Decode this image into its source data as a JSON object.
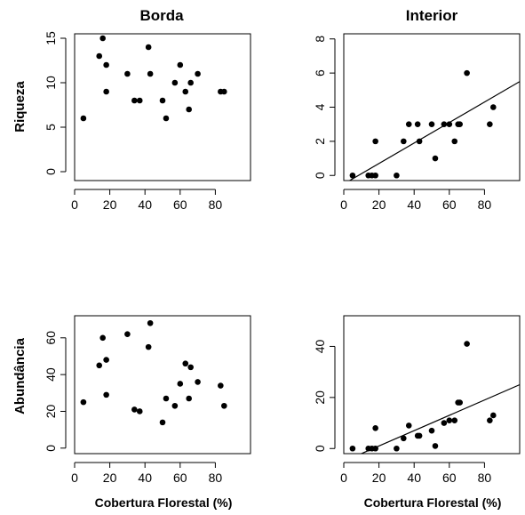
{
  "figure": {
    "col_titles": [
      "Borda",
      "Interior"
    ],
    "ylabels": [
      "Riqueza",
      "Abundância"
    ],
    "xlabel": "Cobertura Florestal (%)"
  },
  "chart_data": [
    {
      "type": "scatter",
      "title": "Borda",
      "xlabel": "",
      "ylabel": "Riqueza",
      "xlim": [
        0,
        100
      ],
      "ylim": [
        -1,
        15.5
      ],
      "xticks": [
        0,
        20,
        40,
        60,
        80
      ],
      "yticks": [
        0,
        5,
        10,
        15
      ],
      "x": [
        5,
        14,
        16,
        18,
        18,
        30,
        34,
        37,
        42,
        43,
        50,
        52,
        57,
        60,
        63,
        65,
        66,
        70,
        83,
        85
      ],
      "y": [
        6,
        13,
        15,
        12,
        9,
        11,
        8,
        8,
        14,
        11,
        8,
        6,
        10,
        12,
        9,
        7,
        10,
        11,
        9,
        9
      ],
      "fit_line": null
    },
    {
      "type": "scatter",
      "title": "Interior",
      "xlabel": "",
      "ylabel": "",
      "xlim": [
        0,
        100
      ],
      "ylim": [
        -0.3,
        8.3
      ],
      "xticks": [
        0,
        20,
        40,
        60,
        80
      ],
      "yticks": [
        0,
        2,
        4,
        6,
        8
      ],
      "x": [
        5,
        14,
        16,
        18,
        18,
        30,
        34,
        37,
        42,
        43,
        50,
        52,
        57,
        60,
        63,
        65,
        66,
        70,
        83,
        85
      ],
      "y": [
        0,
        0,
        0,
        0,
        2,
        0,
        2,
        3,
        3,
        2,
        3,
        1,
        3,
        3,
        2,
        3,
        3,
        6,
        3,
        4
      ],
      "fit_line": {
        "intercept": -0.5,
        "slope": 0.06
      }
    },
    {
      "type": "scatter",
      "title": "",
      "xlabel": "Cobertura Florestal (%)",
      "ylabel": "Abundância",
      "xlim": [
        0,
        100
      ],
      "ylim": [
        -3,
        72
      ],
      "xticks": [
        0,
        20,
        40,
        60,
        80
      ],
      "yticks": [
        0,
        20,
        40,
        60
      ],
      "x": [
        5,
        14,
        16,
        18,
        18,
        30,
        34,
        37,
        42,
        43,
        50,
        52,
        57,
        60,
        63,
        65,
        66,
        70,
        83,
        85
      ],
      "y": [
        25,
        45,
        60,
        29,
        48,
        62,
        21,
        20,
        55,
        68,
        14,
        27,
        23,
        35,
        46,
        27,
        44,
        36,
        34,
        23
      ],
      "fit_line": null
    },
    {
      "type": "scatter",
      "title": "",
      "xlabel": "Cobertura Florestal (%)",
      "ylabel": "",
      "xlim": [
        0,
        100
      ],
      "ylim": [
        -2,
        52
      ],
      "xticks": [
        0,
        20,
        40,
        60,
        80
      ],
      "yticks": [
        0,
        20,
        40
      ],
      "x": [
        5,
        14,
        16,
        18,
        18,
        30,
        34,
        37,
        42,
        43,
        50,
        52,
        57,
        60,
        63,
        65,
        66,
        70,
        83,
        85
      ],
      "y": [
        0,
        0,
        0,
        0,
        8,
        0,
        4,
        9,
        5,
        5,
        7,
        1,
        10,
        11,
        11,
        18,
        18,
        41,
        11,
        13
      ],
      "fit_line": {
        "intercept": -5,
        "slope": 0.3
      }
    }
  ]
}
